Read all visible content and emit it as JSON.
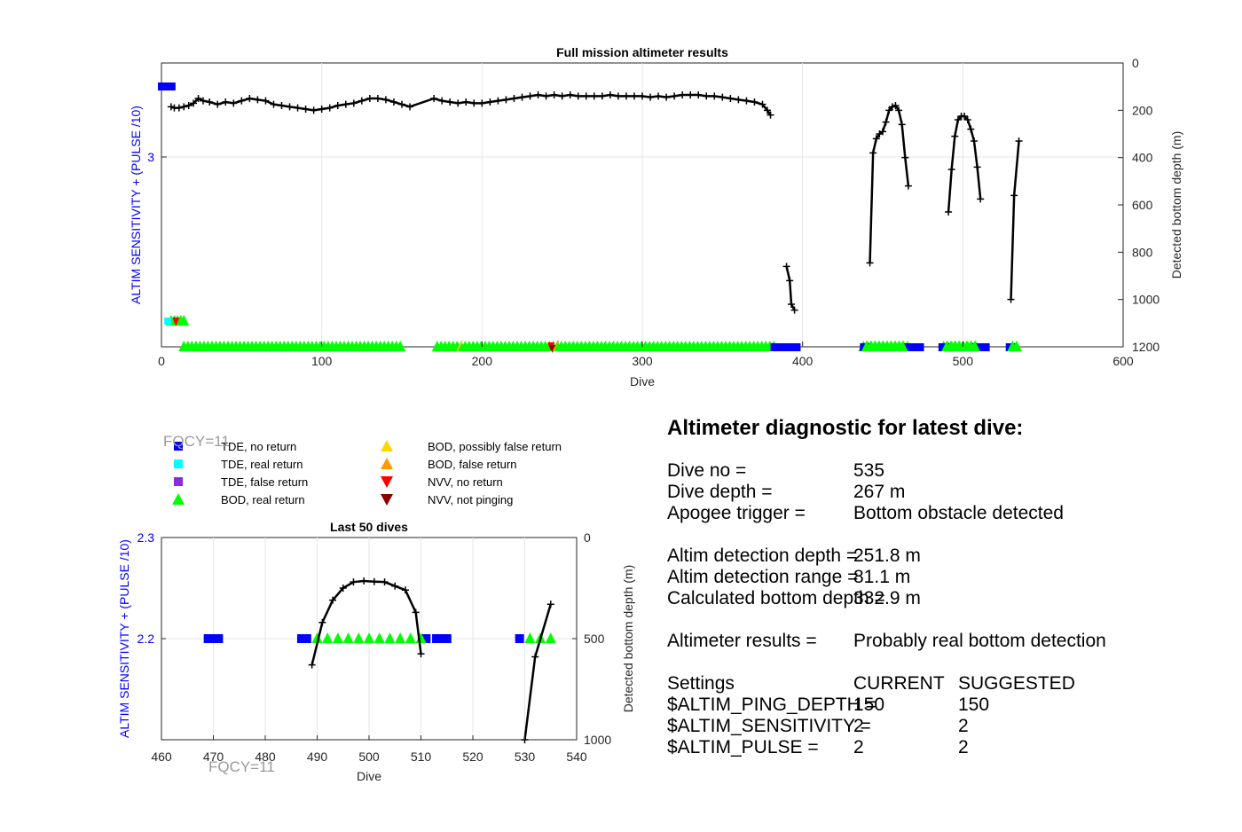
{
  "colors": {
    "tde_no_return": "#0000ff",
    "tde_real_return": "#00ffff",
    "tde_false_return": "#8a2be2",
    "bod_real_return": "#00ff00",
    "bod_possibly_false": "#ffd700",
    "bod_false": "#ff9900",
    "nvv_no_return": "#ff0000",
    "nvv_not_pinging": "#8b0000",
    "bottom_depth_line": "#000000",
    "left_axis": "#0000ff"
  },
  "legend": {
    "items": [
      {
        "label": "TDE, no return",
        "marker": "square",
        "color": "#0000ff"
      },
      {
        "label": "TDE, real return",
        "marker": "square",
        "color": "#00ffff"
      },
      {
        "label": "TDE, false return",
        "marker": "square",
        "color": "#8a2be2"
      },
      {
        "label": "BOD, real return",
        "marker": "triangle-up",
        "color": "#00ff00"
      },
      {
        "label": "BOD, possibly false return",
        "marker": "triangle-up",
        "color": "#ffd700"
      },
      {
        "label": "BOD, false return",
        "marker": "triangle-up",
        "color": "#ff9900"
      },
      {
        "label": "NVV, no return",
        "marker": "triangle-down",
        "color": "#ff0000"
      },
      {
        "label": "NVV, not pinging",
        "marker": "triangle-down",
        "color": "#8b0000"
      }
    ]
  },
  "fqcy_label": "FQCY=11",
  "chart_data": [
    {
      "type": "scatter",
      "title": "Full mission altimeter results",
      "xlabel": "Dive",
      "ylabel": "ALTIM SENSITIVITY + (PULSE /10)",
      "y2label": "Detected bottom depth (m)",
      "xlim": [
        0,
        600
      ],
      "x_ticks": [
        0,
        100,
        200,
        300,
        400,
        500,
        600
      ],
      "y_ticks": [
        3
      ],
      "y2lim": [
        0,
        1200
      ],
      "y2_ticks": [
        0,
        200,
        400,
        600,
        800,
        1000,
        1200
      ],
      "y2_reversed": true,
      "grid": true,
      "bottom_depth_segments": [
        [
          [
            6,
            185
          ],
          [
            8,
            190
          ],
          [
            11,
            190
          ],
          [
            14,
            185
          ],
          [
            17,
            180
          ],
          [
            20,
            170
          ],
          [
            23,
            150
          ],
          [
            26,
            160
          ],
          [
            30,
            165
          ],
          [
            35,
            175
          ],
          [
            40,
            165
          ],
          [
            45,
            170
          ],
          [
            50,
            160
          ],
          [
            55,
            150
          ],
          [
            60,
            155
          ],
          [
            65,
            160
          ],
          [
            70,
            175
          ],
          [
            75,
            180
          ],
          [
            80,
            185
          ],
          [
            85,
            190
          ],
          [
            90,
            195
          ],
          [
            95,
            200
          ],
          [
            100,
            195
          ],
          [
            105,
            190
          ],
          [
            110,
            180
          ],
          [
            115,
            175
          ],
          [
            120,
            170
          ],
          [
            125,
            160
          ],
          [
            130,
            150
          ],
          [
            135,
            150
          ],
          [
            140,
            155
          ],
          [
            145,
            165
          ],
          [
            150,
            175
          ],
          [
            155,
            185
          ],
          [
            170,
            150
          ],
          [
            175,
            160
          ],
          [
            180,
            165
          ],
          [
            185,
            170
          ],
          [
            190,
            165
          ],
          [
            195,
            170
          ],
          [
            200,
            170
          ],
          [
            205,
            165
          ],
          [
            210,
            160
          ],
          [
            215,
            155
          ],
          [
            220,
            150
          ],
          [
            225,
            145
          ],
          [
            230,
            140
          ],
          [
            235,
            135
          ],
          [
            240,
            140
          ],
          [
            245,
            135
          ],
          [
            250,
            140
          ],
          [
            255,
            135
          ],
          [
            260,
            140
          ],
          [
            265,
            140
          ],
          [
            270,
            140
          ],
          [
            275,
            140
          ],
          [
            280,
            135
          ],
          [
            285,
            140
          ],
          [
            290,
            140
          ],
          [
            295,
            140
          ],
          [
            300,
            140
          ],
          [
            305,
            145
          ],
          [
            310,
            140
          ],
          [
            315,
            145
          ],
          [
            320,
            140
          ],
          [
            325,
            135
          ],
          [
            330,
            135
          ],
          [
            335,
            135
          ],
          [
            340,
            140
          ],
          [
            345,
            140
          ],
          [
            350,
            145
          ],
          [
            355,
            150
          ],
          [
            360,
            155
          ],
          [
            365,
            160
          ],
          [
            370,
            165
          ],
          [
            375,
            175
          ],
          [
            378,
            200
          ],
          [
            380,
            220
          ]
        ],
        [
          [
            390,
            860
          ],
          [
            392,
            920
          ],
          [
            393,
            1020
          ],
          [
            395,
            1045
          ]
        ],
        [
          [
            442,
            845
          ],
          [
            444,
            380
          ],
          [
            446,
            320
          ],
          [
            448,
            300
          ],
          [
            450,
            290
          ],
          [
            452,
            250
          ],
          [
            454,
            200
          ],
          [
            456,
            185
          ],
          [
            458,
            180
          ],
          [
            460,
            200
          ],
          [
            462,
            260
          ],
          [
            464,
            400
          ],
          [
            466,
            520
          ]
        ],
        [
          [
            491,
            630
          ],
          [
            493,
            450
          ],
          [
            495,
            310
          ],
          [
            497,
            240
          ],
          [
            499,
            225
          ],
          [
            501,
            225
          ],
          [
            503,
            240
          ],
          [
            505,
            280
          ],
          [
            507,
            330
          ],
          [
            509,
            440
          ],
          [
            511,
            575
          ]
        ],
        [
          [
            530,
            1000
          ],
          [
            532,
            560
          ],
          [
            535,
            330
          ]
        ]
      ],
      "tde_no_return_dives": [
        0,
        1,
        2,
        3,
        4,
        5,
        6,
        383,
        386,
        388,
        392,
        396,
        438,
        440,
        465,
        467,
        469,
        471,
        473,
        487,
        489,
        508,
        510,
        512,
        514,
        529,
        531
      ],
      "bod_real_return_dives": "many dives from 7 to 535 (sensitivity 2.2)",
      "pulse_sensitivity_value": 2.2
    },
    {
      "type": "scatter",
      "title": "Last 50 dives",
      "xlabel": "Dive",
      "ylabel": "ALTIM SENSITIVITY + (PULSE /10)",
      "y2label": "Detected bottom depth (m)",
      "xlim": [
        460,
        540
      ],
      "x_ticks": [
        460,
        470,
        480,
        490,
        500,
        510,
        520,
        530,
        540
      ],
      "ylim": [
        2.1,
        2.3
      ],
      "y_ticks": [
        2.2,
        2.3
      ],
      "y2lim": [
        0,
        1000
      ],
      "y2_ticks": [
        0,
        500,
        1000
      ],
      "y2_reversed": true,
      "grid": true,
      "tde_no_return_dives": [
        469,
        470,
        471,
        487,
        488,
        511,
        513,
        514,
        515,
        529
      ],
      "bod_real_return_dives": [
        490,
        492,
        494,
        496,
        498,
        500,
        502,
        504,
        506,
        508,
        510,
        531,
        533,
        535
      ],
      "bottom_depth_segments": [
        [
          [
            489,
            630
          ],
          [
            491,
            420
          ],
          [
            493,
            310
          ],
          [
            495,
            250
          ],
          [
            497,
            220
          ],
          [
            499,
            215
          ],
          [
            501,
            218
          ],
          [
            503,
            220
          ],
          [
            505,
            240
          ],
          [
            507,
            260
          ],
          [
            509,
            370
          ],
          [
            510,
            575
          ]
        ],
        [
          [
            530,
            1000
          ],
          [
            532,
            590
          ],
          [
            535,
            330
          ]
        ]
      ]
    }
  ],
  "diagnostic": {
    "title": "Altimeter diagnostic for latest dive:",
    "rows": [
      {
        "label": "Dive no =",
        "value": "535"
      },
      {
        "label": "Dive depth =",
        "value": "267 m"
      },
      {
        "label": "Apogee trigger =",
        "value": "Bottom obstacle detected"
      },
      {
        "label": "Altim detection depth =",
        "value": "251.8 m"
      },
      {
        "label": "Altim detection range =",
        "value": "81.1 m"
      },
      {
        "label": "Calculated bottom depth =",
        "value": "332.9 m"
      },
      {
        "label": "Altimeter results =",
        "value": "Probably real bottom detection"
      }
    ],
    "settings": {
      "header_label": "Settings",
      "header_current": "CURRENT",
      "header_suggested": "SUGGESTED",
      "rows": [
        {
          "label": "$ALTIM_PING_DEPTH =",
          "current": "150",
          "suggested": "150"
        },
        {
          "label": "$ALTIM_SENSITIVITY =",
          "current": "2",
          "suggested": "2"
        },
        {
          "label": "$ALTIM_PULSE =",
          "current": "2",
          "suggested": "2"
        }
      ]
    }
  }
}
